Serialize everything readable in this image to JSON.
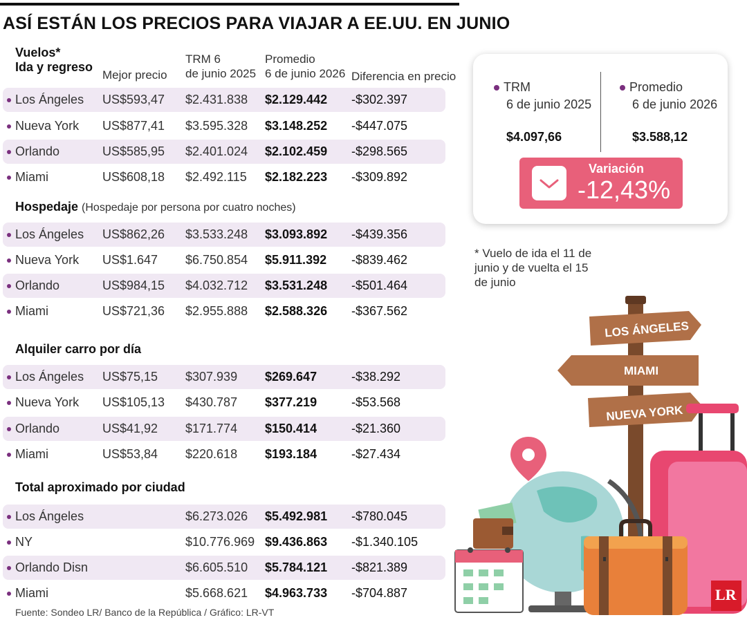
{
  "title": "ASÍ ESTÁN LOS PRECIOS PARA VIAJAR A EE.UU. EN JUNIO",
  "headers": {
    "vuelos_line1": "Vuelos*",
    "vuelos_line2": "Ida y regreso",
    "mejor_precio": "Mejor precio",
    "trm_line1": "TRM 6",
    "trm_line2": "de junio 2025",
    "promedio_line1": "Promedio",
    "promedio_line2": "6 de junio 2026",
    "diferencia": "Diferencia en precio"
  },
  "sections": {
    "vuelos": {
      "rows": [
        {
          "city": "Los Ángeles",
          "mejor": "US$593,47",
          "trm": "$2.431.838",
          "promedio": "$2.129.442",
          "dif": "-$302.397"
        },
        {
          "city": "Nueva York",
          "mejor": "US$877,41",
          "trm": "$3.595.328",
          "promedio": "$3.148.252",
          "dif": "-$447.075"
        },
        {
          "city": "Orlando",
          "mejor": "US$585,95",
          "trm": "$2.401.024",
          "promedio": "$2.102.459",
          "dif": "-$298.565"
        },
        {
          "city": "Miami",
          "mejor": "US$608,18",
          "trm": "$2.492.115",
          "promedio": "$2.182.223",
          "dif": "-$309.892"
        }
      ]
    },
    "hospedaje": {
      "title": "Hospedaje",
      "note": "(Hospedaje por persona por cuatro noches)",
      "rows": [
        {
          "city": "Los Ángeles",
          "mejor": "US$862,26",
          "trm": "$3.533.248",
          "promedio": "$3.093.892",
          "dif": "-$439.356"
        },
        {
          "city": "Nueva York",
          "mejor": "US$1.647",
          "trm": "$6.750.854",
          "promedio": "$5.911.392",
          "dif": "-$839.462"
        },
        {
          "city": "Orlando",
          "mejor": "US$984,15",
          "trm": "$4.032.712",
          "promedio": "$3.531.248",
          "dif": "-$501.464"
        },
        {
          "city": "Miami",
          "mejor": "US$721,36",
          "trm": "$2.955.888",
          "promedio": "$2.588.326",
          "dif": "-$367.562"
        }
      ]
    },
    "alquiler": {
      "title": "Alquiler carro por día",
      "rows": [
        {
          "city": "Los Ángeles",
          "mejor": "US$75,15",
          "trm": "$307.939",
          "promedio": "$269.647",
          "dif": "-$38.292"
        },
        {
          "city": "Nueva York",
          "mejor": "US$105,13",
          "trm": "$430.787",
          "promedio": "$377.219",
          "dif": "-$53.568"
        },
        {
          "city": "Orlando",
          "mejor": "US$41,92",
          "trm": "$171.774",
          "promedio": "$150.414",
          "dif": "-$21.360"
        },
        {
          "city": "Miami",
          "mejor": "US$53,84",
          "trm": "$220.618",
          "promedio": "$193.184",
          "dif": "-$27.434"
        }
      ]
    },
    "total": {
      "title": "Total aproximado por ciudad",
      "rows": [
        {
          "city": "Los Ángeles",
          "trm": "$6.273.026",
          "promedio": "$5.492.981",
          "dif": "-$780.045"
        },
        {
          "city": "NY",
          "trm": "$10.776.969",
          "promedio": "$9.436.863",
          "dif": "-$1.340.105"
        },
        {
          "city": "Orlando Disn",
          "trm": "$6.605.510",
          "promedio": "$5.784.121",
          "dif": "-$821.389"
        },
        {
          "city": "Miami",
          "trm": "$5.668.621",
          "promedio": "$4.963.733",
          "dif": "-$704.887"
        }
      ]
    }
  },
  "card": {
    "trm_label_line1": "TRM",
    "trm_label_line2": "6 de junio 2025",
    "trm_value": "$4.097,66",
    "promedio_label_line1": "Promedio",
    "promedio_label_line2": "6 de junio 2026",
    "promedio_value": "$3.588,12",
    "variacion_label": "Variación",
    "variacion_value": "-12,43%"
  },
  "footnote": "* Vuelo de ida el 11 de junio y de vuelta el 15 de junio",
  "signs": {
    "sign1": "LOS ÁNGELES",
    "sign2": "MIAMI",
    "sign3": "NUEVA YORK"
  },
  "source": "Fuente: Sondeo LR/ Banco de la República / Gráfico: LR-VT",
  "logo": "LR",
  "colors": {
    "accent_purple": "#7a2f7e",
    "row_shade": "#f0e8f3",
    "variation_pink": "#e8607a",
    "logo_red": "#d81b2a"
  }
}
